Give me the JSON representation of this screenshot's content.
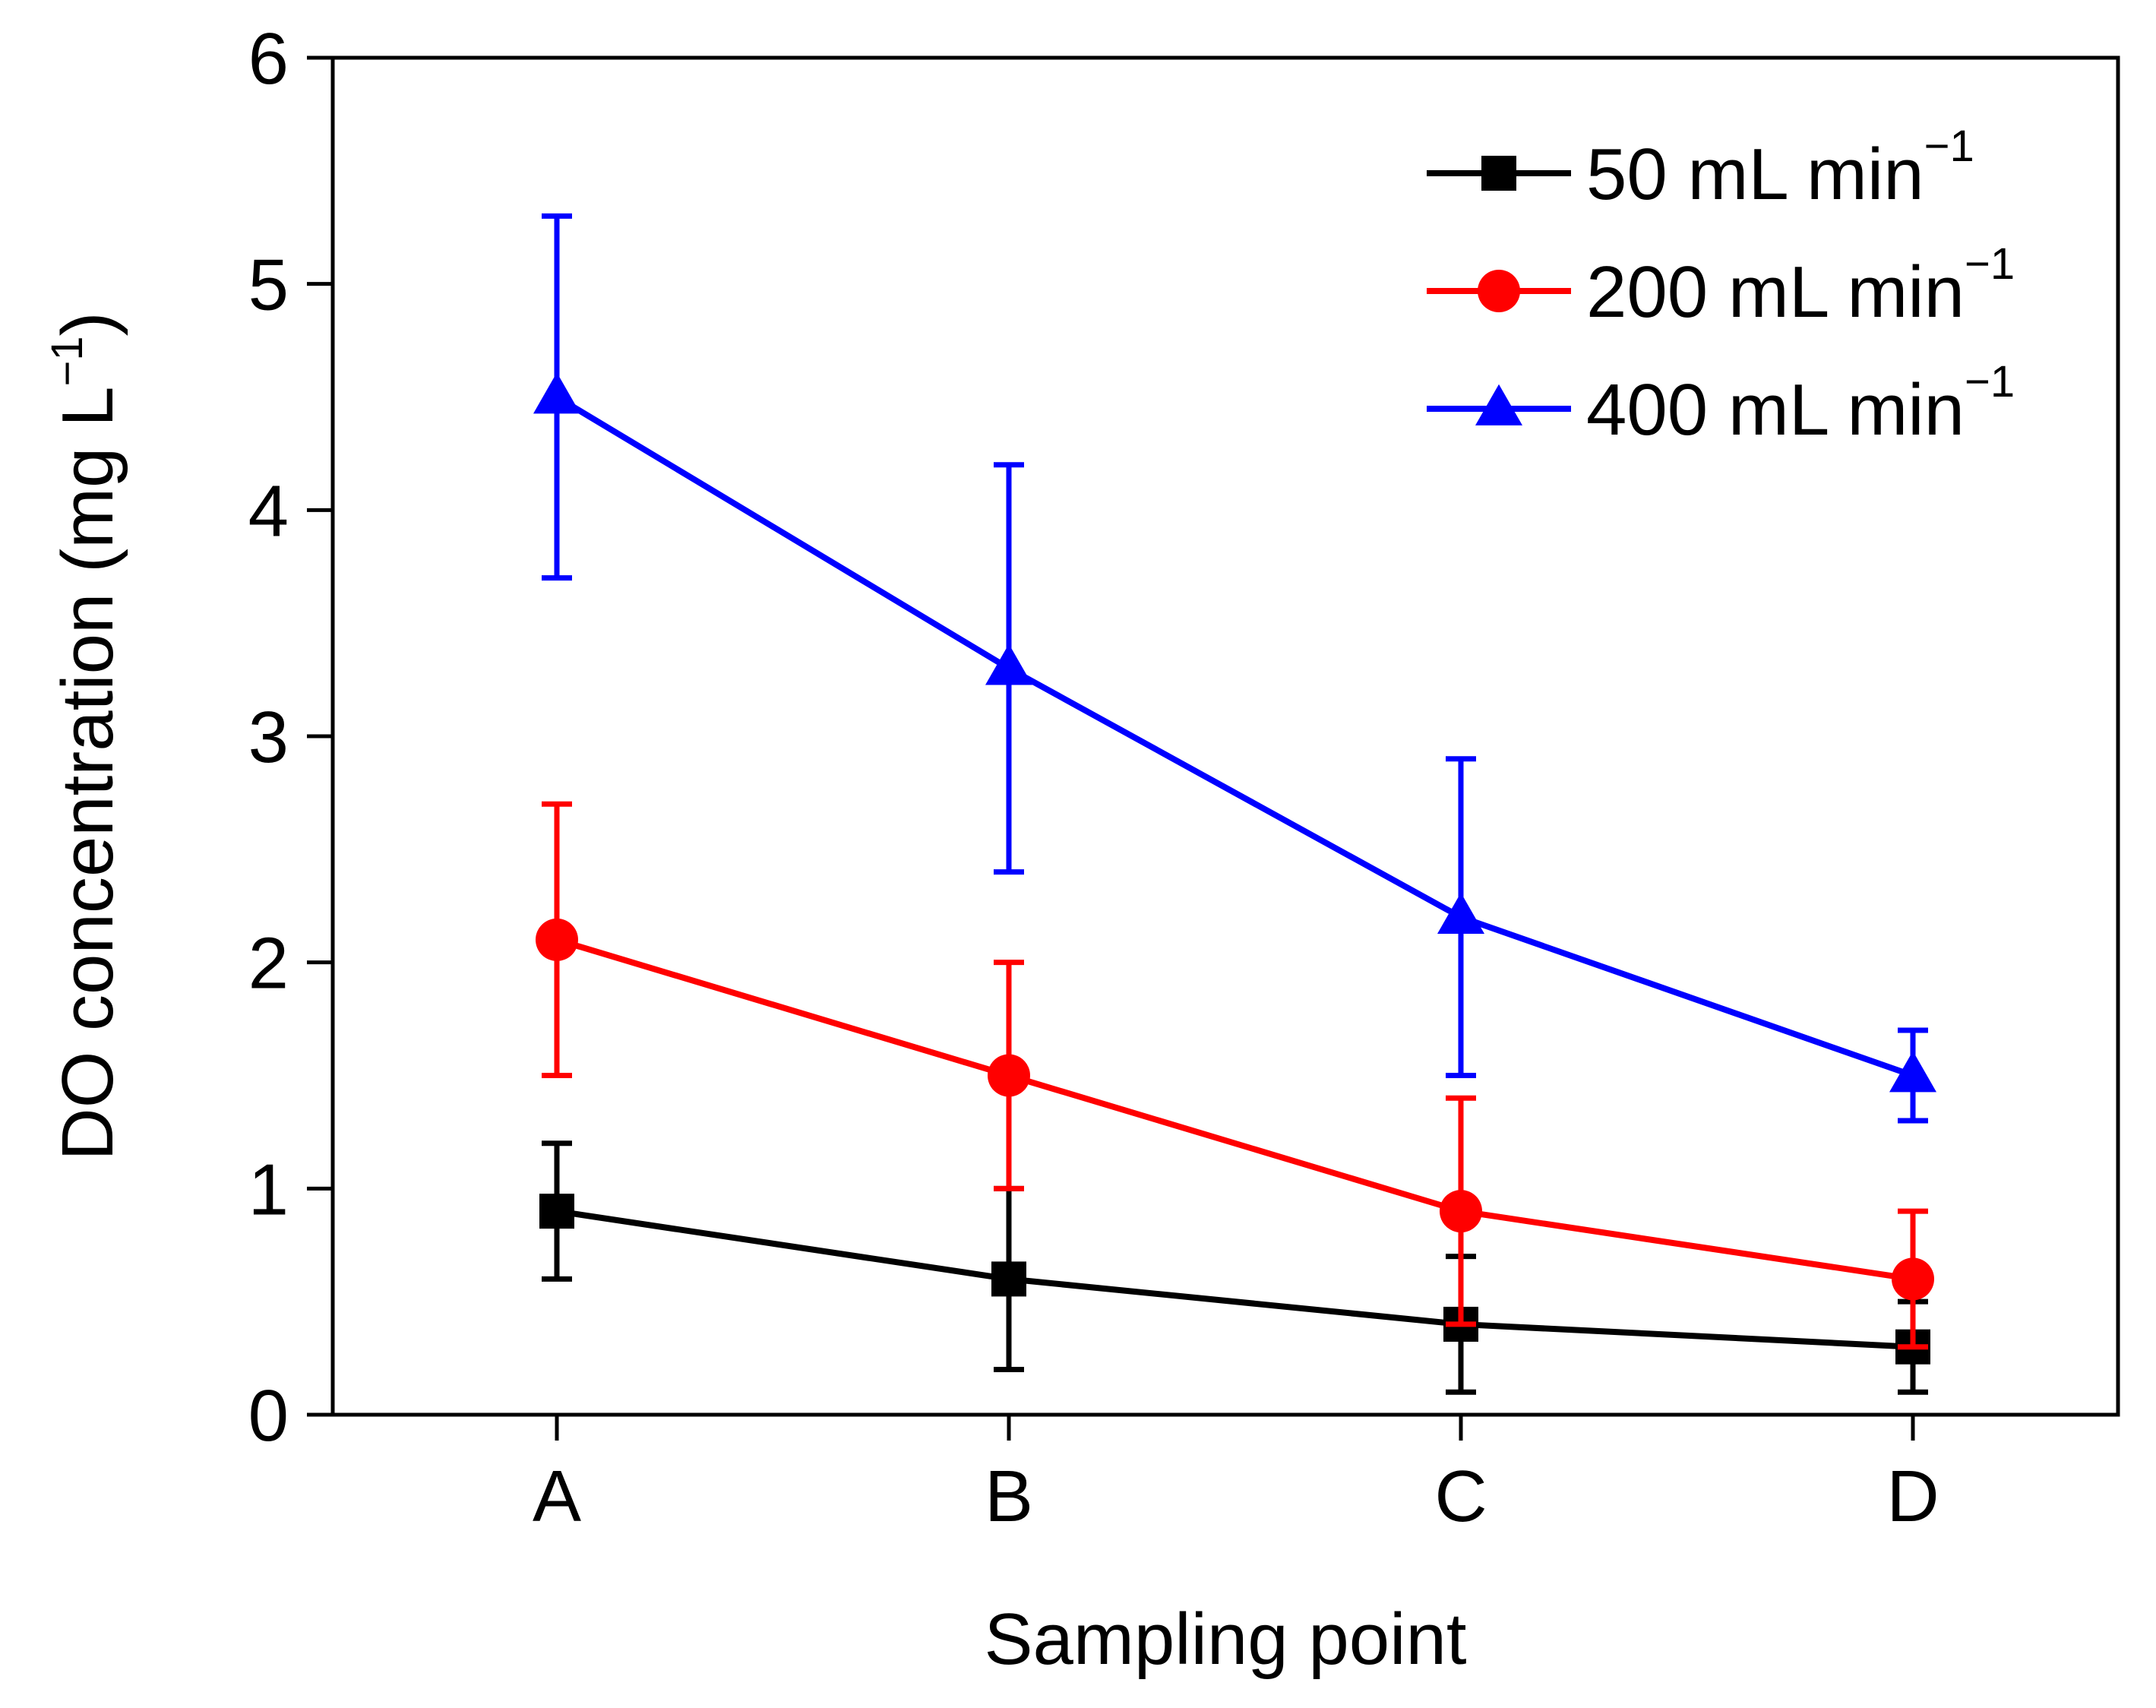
{
  "chart_data": {
    "type": "line",
    "title": "",
    "xlabel": "Sampling point",
    "ylabel": {
      "main": "DO concentration (mg L",
      "sup": "−1",
      "close": ")"
    },
    "categories": [
      "A",
      "B",
      "C",
      "D"
    ],
    "ylim": [
      0,
      6
    ],
    "yticks": [
      0,
      1,
      2,
      3,
      4,
      5,
      6
    ],
    "legend_position": "top-right",
    "series": [
      {
        "name": "50 mL min−1",
        "label_main": "50 mL min",
        "label_sup": "−1",
        "color": "#000000",
        "marker": "square",
        "values": [
          0.9,
          0.6,
          0.4,
          0.3
        ],
        "err_low": [
          0.6,
          0.2,
          0.1,
          0.1
        ],
        "err_high": [
          1.2,
          1.0,
          0.7,
          0.5
        ]
      },
      {
        "name": "200 mL min−1",
        "label_main": "200 mL min",
        "label_sup": "−1",
        "color": "#ff0000",
        "marker": "circle",
        "values": [
          2.1,
          1.5,
          0.9,
          0.6
        ],
        "err_low": [
          1.5,
          1.0,
          0.4,
          0.3
        ],
        "err_high": [
          2.7,
          2.0,
          1.4,
          0.9
        ]
      },
      {
        "name": "400 mL min−1",
        "label_main": "400 mL min",
        "label_sup": "−1",
        "color": "#0000ff",
        "marker": "triangle",
        "values": [
          4.5,
          3.3,
          2.2,
          1.5
        ],
        "err_low": [
          3.7,
          2.4,
          1.5,
          1.3
        ],
        "err_high": [
          5.3,
          4.2,
          2.9,
          1.7
        ]
      }
    ]
  }
}
